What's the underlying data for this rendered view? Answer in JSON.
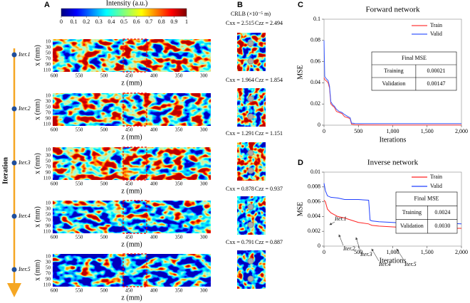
{
  "panel_labels": [
    "A",
    "B",
    "C",
    "D"
  ],
  "panel_a": {
    "colorbar": {
      "title": "Intensity (a.u.)",
      "lim": [
        0,
        1
      ],
      "ticks": [
        0,
        0.1,
        0.2,
        0.3,
        0.4,
        0.5,
        0.6,
        0.7,
        0.8,
        0.9,
        1
      ]
    },
    "z_label": "z (mm)",
    "x_label": "x (mm)",
    "zlim": [
      603,
      286
    ],
    "zticks": [
      600,
      550,
      500,
      450,
      400,
      350,
      300
    ],
    "xlim": [
      0,
      115
    ],
    "xticks": [
      10,
      30,
      50,
      70,
      90,
      110
    ],
    "iterations": [
      "Iter.1",
      "Iter.2",
      "Iter.3",
      "Iter.4",
      "Iter.5"
    ],
    "arrow_label": "Iteration"
  },
  "panel_b": {
    "title": "CRLB (×10⁻⁵ m)",
    "rows": [
      {
        "cxx": "Cxx = 2.515",
        "czz": "Czz = 2.494"
      },
      {
        "cxx": "Cxx = 1.964",
        "czz": "Czz = 1.854"
      },
      {
        "cxx": "Cxx = 1.291",
        "czz": "Czz = 1.151"
      },
      {
        "cxx": "Cxx = 0.878",
        "czz": "Czz = 0.937"
      },
      {
        "cxx": "Cxx = 0.791",
        "czz": "Czz = 0.887"
      }
    ]
  },
  "chart_data": [
    {
      "type": "line",
      "title": "Forward  network",
      "x_label": "Iterations",
      "y_label": "MSE",
      "x": [
        0,
        10,
        30,
        60,
        80,
        100,
        130,
        150,
        180,
        220,
        260,
        300,
        350,
        380,
        400,
        450,
        600,
        1000,
        1500,
        2000
      ],
      "series": [
        {
          "name": "Train",
          "color": "#ff3b3b",
          "values": [
            0.045,
            0.043,
            0.042,
            0.04,
            0.035,
            0.02,
            0.018,
            0.017,
            0.013,
            0.012,
            0.011,
            0.008,
            0.007,
            0.006,
            0.001,
            0.0005,
            0.0003,
            0.0002,
            0.0002,
            0.0002
          ]
        },
        {
          "name": "Valid",
          "color": "#3b5bff",
          "values": [
            0.08,
            0.046,
            0.044,
            0.042,
            0.037,
            0.022,
            0.019,
            0.018,
            0.015,
            0.013,
            0.012,
            0.01,
            0.008,
            0.007,
            0.002,
            0.0016,
            0.0015,
            0.0015,
            0.0015,
            0.0015
          ]
        }
      ],
      "xlim": [
        0,
        2000
      ],
      "xticks": [
        0,
        500,
        {
          "value": 1000,
          "label": "1,000"
        },
        {
          "value": 1500,
          "label": "1,500"
        },
        {
          "value": 2000,
          "label": "2,000"
        }
      ],
      "ylim": [
        0,
        0.1
      ],
      "yticks": [
        0,
        0.02,
        0.04,
        0.06,
        0.08,
        0.1
      ],
      "legend": "upper right",
      "table": {
        "header": "Final MSE",
        "rows": [
          [
            "Training",
            "0.00021"
          ],
          [
            "Validation",
            "0.00147"
          ]
        ]
      }
    },
    {
      "type": "line",
      "title": "Inverse  network",
      "x_label": "Iterations",
      "y_label": "MSE",
      "x": [
        0,
        20,
        50,
        100,
        200,
        300,
        400,
        500,
        650,
        670,
        700,
        800,
        1000,
        1200,
        1500,
        1800,
        2000
      ],
      "series": [
        {
          "name": "Train",
          "color": "#ff2020",
          "values": [
            0.0062,
            0.006,
            0.005,
            0.0045,
            0.004,
            0.0038,
            0.0035,
            0.0032,
            0.003,
            0.0029,
            0.0028,
            0.0027,
            0.0026,
            0.0025,
            0.0025,
            0.0024,
            0.0024
          ]
        },
        {
          "name": "Valid",
          "color": "#2040ff",
          "values": [
            0.0085,
            0.0075,
            0.0068,
            0.0066,
            0.0065,
            0.0063,
            0.0063,
            0.0063,
            0.0062,
            0.0035,
            0.0034,
            0.0033,
            0.0032,
            0.0031,
            0.0031,
            0.0031,
            0.003
          ]
        }
      ],
      "xlim": [
        0,
        2000
      ],
      "xticks": [
        0,
        500,
        {
          "value": 1000,
          "label": "1,000"
        },
        {
          "value": 1500,
          "label": "1,500"
        },
        {
          "value": 2000,
          "label": "2,000"
        }
      ],
      "ylim": [
        0,
        0.01
      ],
      "yticks": [
        0,
        0.002,
        0.004,
        0.006,
        0.008,
        0.01
      ],
      "legend": "upper right",
      "annotations": [
        "Iter.1",
        "Iter.2",
        "Iter.3",
        "Iter.4",
        "Iter.5"
      ],
      "table": {
        "header": "Final MSE",
        "rows": [
          [
            "Training",
            "0.0024"
          ],
          [
            "Validation",
            "0.0030"
          ]
        ]
      }
    }
  ]
}
